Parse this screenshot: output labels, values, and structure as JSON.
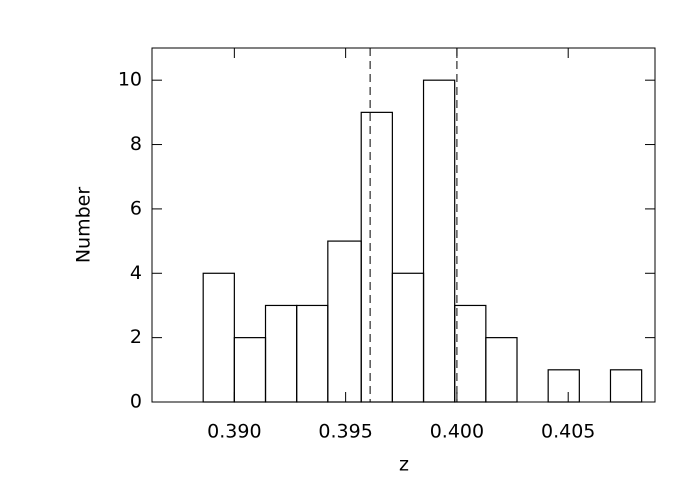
{
  "chart_data": {
    "type": "histogram",
    "xlabel": "z",
    "ylabel": "Number",
    "bins": [
      0.3886,
      0.39,
      0.3914,
      0.3928,
      0.3942,
      0.3957,
      0.3971,
      0.3985,
      0.3999,
      0.4013,
      0.4027,
      0.4041,
      0.4055,
      0.4069,
      0.4083
    ],
    "counts": [
      4,
      2,
      3,
      3,
      5,
      9,
      4,
      10,
      3,
      2,
      0,
      1,
      0,
      1
    ],
    "color": "#000000",
    "vlines": [
      0.3961,
      0.4
    ],
    "xlim": [
      0.3863,
      0.4089
    ],
    "ylim": [
      0,
      11
    ],
    "xticks": [
      {
        "value": 0.39,
        "label": "0.390"
      },
      {
        "value": 0.395,
        "label": "0.395"
      },
      {
        "value": 0.4,
        "label": "0.400"
      },
      {
        "value": 0.405,
        "label": "0.405"
      }
    ],
    "yticks": [
      0,
      2,
      4,
      6,
      8,
      10
    ],
    "grid": false
  }
}
